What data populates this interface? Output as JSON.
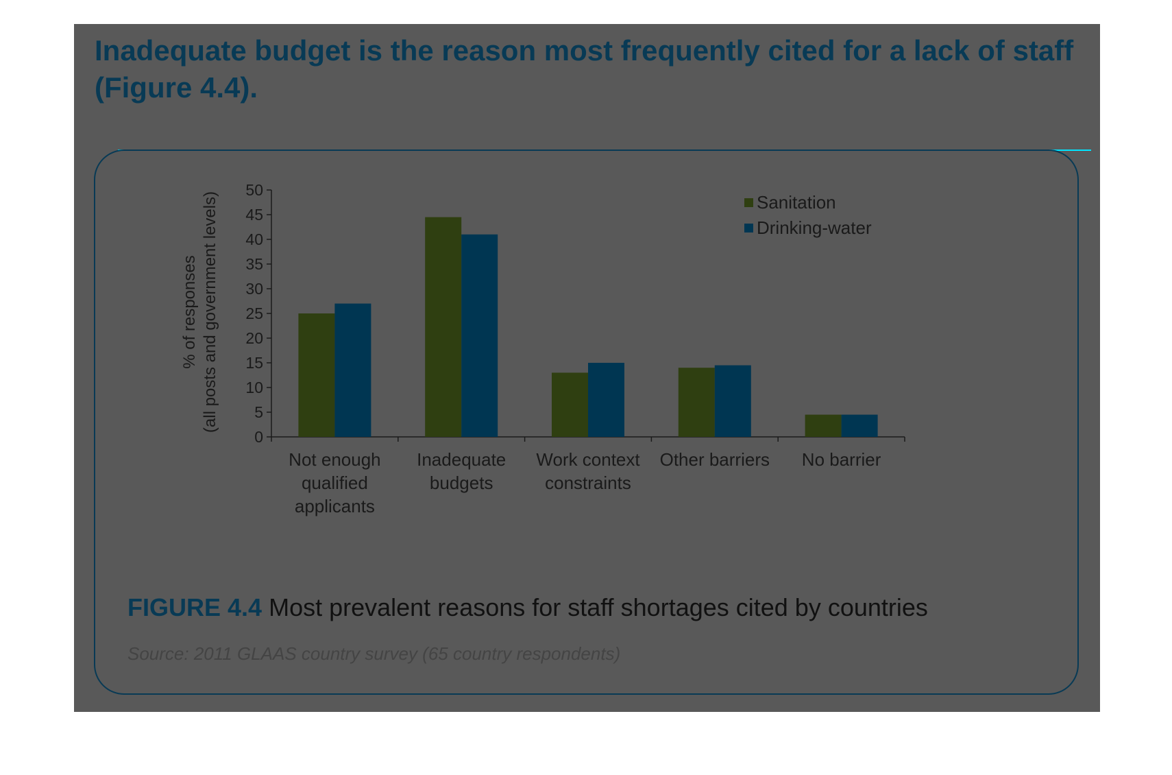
{
  "heading": "Inadequate budget is the reason most frequently cited for a lack of staff (Figure 4.4).",
  "caption": {
    "figure_number": "FIGURE 4.4",
    "text": "Most prevalent reasons for staff shortages cited by countries"
  },
  "source": "Source: 2011 GLAAS country survey (65 country respondents)",
  "colors": {
    "sanitation": "#2f3f11",
    "drinking_water": "#003652",
    "panel": "#595959",
    "accent": "#00e5ff",
    "heading": "#083a55"
  },
  "chart_data": {
    "type": "bar",
    "categories": [
      [
        "Not enough",
        "qualified",
        "applicants"
      ],
      [
        "Inadequate",
        "budgets"
      ],
      [
        "Work context",
        "constraints"
      ],
      [
        "Other barriers"
      ],
      [
        "No barrier"
      ]
    ],
    "series": [
      {
        "name": "Sanitation",
        "values": [
          25,
          44.5,
          13,
          14,
          4.5
        ]
      },
      {
        "name": "Drinking-water",
        "values": [
          27,
          41,
          15,
          14.5,
          4.5
        ]
      }
    ],
    "ylabel_lines": [
      "% of responses",
      "(all posts and government levels)"
    ],
    "xlabel": "",
    "ylim": [
      0,
      50
    ],
    "yticks": [
      "0",
      "5",
      "10",
      "15",
      "20",
      "25",
      "30",
      "35",
      "40",
      "45",
      "50"
    ],
    "grid": false,
    "legend": "top-right"
  }
}
